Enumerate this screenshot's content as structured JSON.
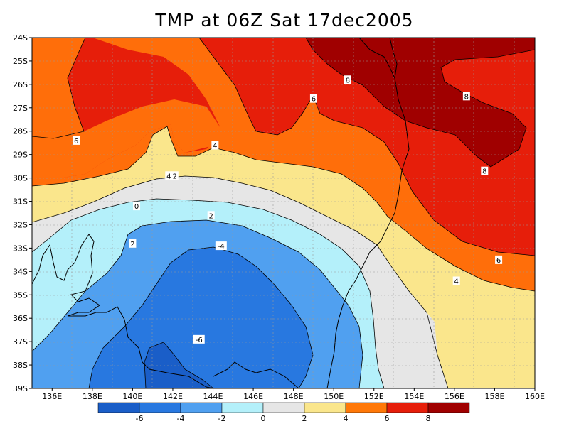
{
  "title": "TMP at 06Z Sat 17dec2005",
  "lat_labels": [
    "24S",
    "25S",
    "26S",
    "27S",
    "28S",
    "29S",
    "30S",
    "31S",
    "32S",
    "33S",
    "34S",
    "35S",
    "36S",
    "37S",
    "38S",
    "39S"
  ],
  "lon_labels": [
    "136E",
    "138E",
    "140E",
    "142E",
    "144E",
    "146E",
    "148E",
    "150E",
    "152E",
    "154E",
    "156E",
    "158E",
    "160E"
  ],
  "contour_labels": [
    {
      "text": "8",
      "at": "25.8S 150.7E"
    },
    {
      "text": "8",
      "at": "26.5S 156.6E"
    },
    {
      "text": "8",
      "at": "29.7S 157.5E"
    },
    {
      "text": "6",
      "at": "26.6S 149.0E"
    },
    {
      "text": "6",
      "at": "28.4S 137.2E"
    },
    {
      "text": "6",
      "at": "33.5S 158.2E"
    },
    {
      "text": "4",
      "at": "28.6S 144.1E"
    },
    {
      "text": "4",
      "at": "29.9S 141.8E"
    },
    {
      "text": "4",
      "at": "34.4S 156.1E"
    },
    {
      "text": "2",
      "at": "29.9S 142.1E"
    },
    {
      "text": "2",
      "at": "31.6S 143.9E"
    },
    {
      "text": "0",
      "at": "31.2S 140.2E"
    },
    {
      "text": "2",
      "at": "32.8S 140.0E"
    },
    {
      "text": "-4",
      "at": "32.9S 144.4E"
    },
    {
      "text": "-6",
      "at": "36.9S 143.3E"
    }
  ],
  "colorbar": {
    "labels": [
      "-6",
      "-4",
      "-2",
      "0",
      "2",
      "4",
      "6",
      "8"
    ],
    "colors": [
      "#1a5ec8",
      "#2878e0",
      "#50a0f0",
      "#b4f0fa",
      "#e6e6e6",
      "#fae68c",
      "#ff7808",
      "#e61e0a",
      "#a00000"
    ]
  },
  "colors": {
    "t_hot8": "#a00000",
    "t_6": "#e61e0a",
    "t_4": "#ff6e0a",
    "t_2": "#fae68c",
    "t_0": "#e6e6e6",
    "t_m2": "#b4f0fa",
    "t_m4": "#50a0f0",
    "t_m6": "#2878e0",
    "t_cold": "#1a5ec8"
  }
}
